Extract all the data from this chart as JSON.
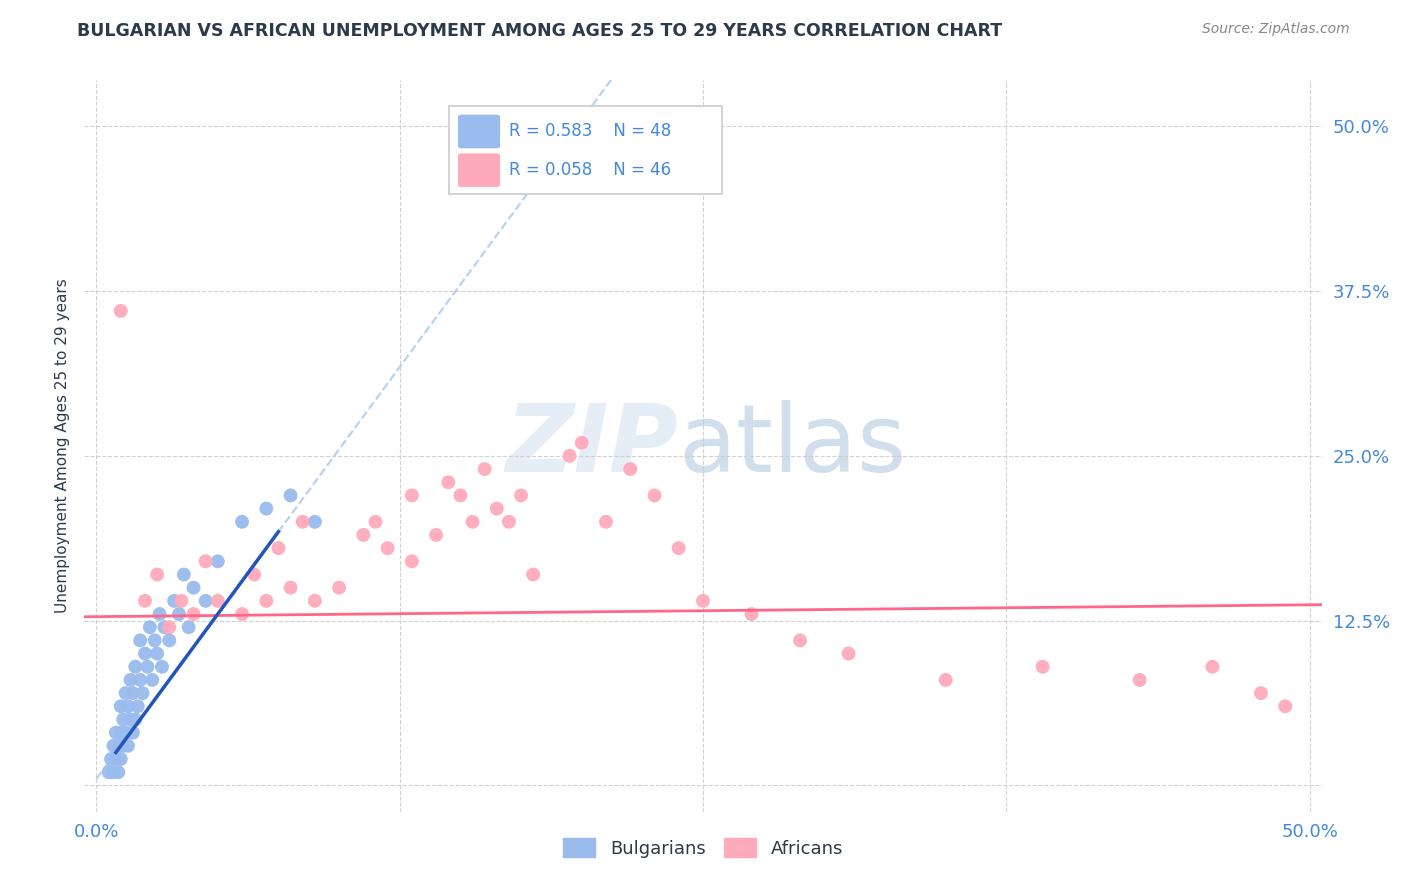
{
  "title": "BULGARIAN VS AFRICAN UNEMPLOYMENT AMONG AGES 25 TO 29 YEARS CORRELATION CHART",
  "source": "Source: ZipAtlas.com",
  "ylabel": "Unemployment Among Ages 25 to 29 years",
  "xlim": [
    -0.005,
    0.505
  ],
  "ylim": [
    -0.02,
    0.535
  ],
  "xticks": [
    0.0,
    0.125,
    0.25,
    0.375,
    0.5
  ],
  "yticks": [
    0.0,
    0.125,
    0.25,
    0.375,
    0.5
  ],
  "xticklabels_left": [
    "0.0%",
    "",
    "",
    "",
    ""
  ],
  "xticklabels_right": [
    "",
    "",
    "",
    "",
    "50.0%"
  ],
  "yticklabels_right": [
    "",
    "12.5%",
    "25.0%",
    "37.5%",
    "50.0%"
  ],
  "bg_color": "#ffffff",
  "grid_color": "#cccccc",
  "title_color": "#2d3a4a",
  "tick_color": "#4488dd",
  "bulgarians_color": "#99bbee",
  "africans_color": "#ffaabb",
  "trendline_blue_color": "#2255bb",
  "trendline_pink_color": "#ff6688",
  "dashed_color": "#aaccee",
  "legend_bulgarians_R": "R = 0.583",
  "legend_bulgarians_N": "N = 48",
  "legend_africans_R": "R = 0.058",
  "legend_africans_N": "N = 46",
  "bulgarians_x": [
    0.005,
    0.006,
    0.007,
    0.007,
    0.008,
    0.008,
    0.009,
    0.009,
    0.01,
    0.01,
    0.01,
    0.011,
    0.011,
    0.012,
    0.012,
    0.013,
    0.013,
    0.014,
    0.014,
    0.015,
    0.015,
    0.016,
    0.016,
    0.017,
    0.018,
    0.018,
    0.019,
    0.02,
    0.021,
    0.022,
    0.023,
    0.024,
    0.025,
    0.026,
    0.027,
    0.028,
    0.03,
    0.032,
    0.034,
    0.036,
    0.038,
    0.04,
    0.045,
    0.05,
    0.06,
    0.07,
    0.08,
    0.09
  ],
  "bulgarians_y": [
    0.01,
    0.02,
    0.01,
    0.03,
    0.02,
    0.04,
    0.01,
    0.03,
    0.02,
    0.04,
    0.06,
    0.03,
    0.05,
    0.04,
    0.07,
    0.03,
    0.06,
    0.05,
    0.08,
    0.04,
    0.07,
    0.05,
    0.09,
    0.06,
    0.08,
    0.11,
    0.07,
    0.1,
    0.09,
    0.12,
    0.08,
    0.11,
    0.1,
    0.13,
    0.09,
    0.12,
    0.11,
    0.14,
    0.13,
    0.16,
    0.12,
    0.15,
    0.14,
    0.17,
    0.2,
    0.21,
    0.22,
    0.2
  ],
  "africans_x": [
    0.01,
    0.02,
    0.025,
    0.03,
    0.035,
    0.04,
    0.045,
    0.05,
    0.06,
    0.065,
    0.07,
    0.075,
    0.08,
    0.085,
    0.09,
    0.1,
    0.11,
    0.115,
    0.12,
    0.13,
    0.14,
    0.145,
    0.15,
    0.155,
    0.165,
    0.17,
    0.175,
    0.18,
    0.195,
    0.21,
    0.22,
    0.23,
    0.24,
    0.25,
    0.27,
    0.29,
    0.31,
    0.35,
    0.39,
    0.43,
    0.46,
    0.48,
    0.49,
    0.2,
    0.16,
    0.13
  ],
  "africans_y": [
    0.36,
    0.14,
    0.16,
    0.12,
    0.14,
    0.13,
    0.17,
    0.14,
    0.13,
    0.16,
    0.14,
    0.18,
    0.15,
    0.2,
    0.14,
    0.15,
    0.19,
    0.2,
    0.18,
    0.17,
    0.19,
    0.23,
    0.22,
    0.2,
    0.21,
    0.2,
    0.22,
    0.16,
    0.25,
    0.2,
    0.24,
    0.22,
    0.18,
    0.14,
    0.13,
    0.11,
    0.1,
    0.08,
    0.09,
    0.08,
    0.09,
    0.07,
    0.06,
    0.26,
    0.24,
    0.22
  ],
  "b_trend_slope": 2.5,
  "b_trend_intercept": 0.005,
  "b_trend_solid_xmin": 0.008,
  "b_trend_solid_xmax": 0.075,
  "b_trend_dash_xmin": 0.0,
  "b_trend_dash_xmax": 0.3,
  "a_trend_slope": 0.018,
  "a_trend_intercept": 0.128,
  "a_trend_xmin": -0.005,
  "a_trend_xmax": 0.505
}
